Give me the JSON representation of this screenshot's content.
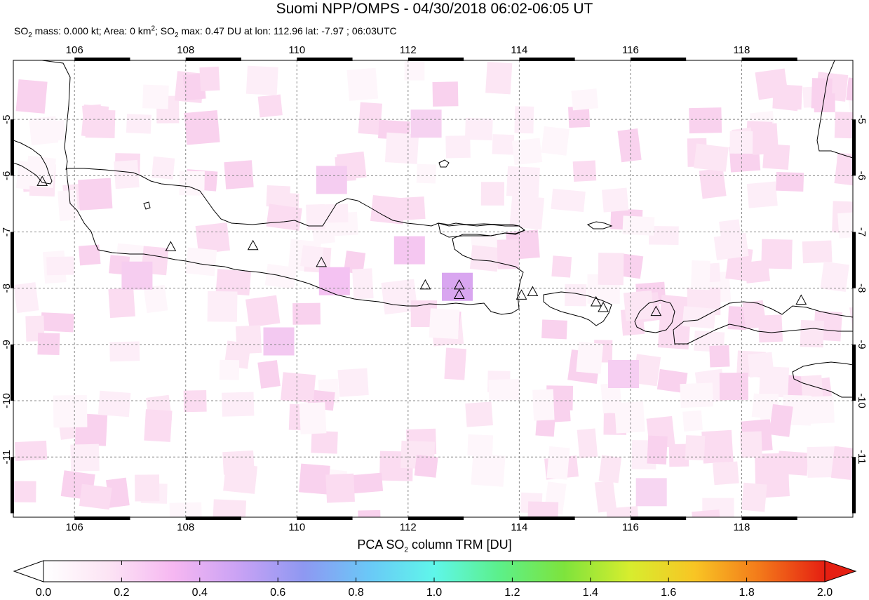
{
  "title": "Suomi NPP/OMPS - 04/30/2018 06:02-06:05 UT",
  "subtitle": {
    "so2_mass": "0.000 kt",
    "area": "0 km",
    "so2_max": "0.47 DU",
    "lon": "112.96",
    "lat": "-7.97",
    "time": "06:03UTC"
  },
  "map": {
    "lon_range": [
      104.9,
      120.0
    ],
    "lat_range": [
      -12.07,
      -3.95
    ],
    "lon_ticks": [
      "106",
      "108",
      "110",
      "112",
      "114",
      "116",
      "118"
    ],
    "lat_ticks": [
      "-5",
      "-6",
      "-7",
      "-8",
      "-9",
      "-10",
      "-11"
    ],
    "grid": "dashed",
    "volcanoes": [
      {
        "lon": 105.42,
        "lat": -6.1
      },
      {
        "lon": 107.73,
        "lat": -7.26
      },
      {
        "lon": 109.21,
        "lat": -7.24
      },
      {
        "lon": 110.44,
        "lat": -7.54
      },
      {
        "lon": 112.31,
        "lat": -7.94
      },
      {
        "lon": 112.92,
        "lat": -7.94
      },
      {
        "lon": 112.92,
        "lat": -8.11
      },
      {
        "lon": 114.04,
        "lat": -8.12
      },
      {
        "lon": 114.24,
        "lat": -8.06
      },
      {
        "lon": 115.38,
        "lat": -8.24
      },
      {
        "lon": 115.51,
        "lat": -8.34
      },
      {
        "lon": 116.46,
        "lat": -8.41
      },
      {
        "lon": 119.07,
        "lat": -8.21
      }
    ]
  },
  "colorbar": {
    "title": "PCA SO",
    "title_sub": "2",
    "title_rest": " column TRM [DU]",
    "min": 0.0,
    "max": 2.0,
    "ticks": [
      "0.0",
      "0.2",
      "0.4",
      "0.6",
      "0.8",
      "1.0",
      "1.2",
      "1.4",
      "1.6",
      "1.8",
      "2.0"
    ],
    "colors": [
      "#ffffff",
      "#fce4f4",
      "#f6b7f2",
      "#c9a2f4",
      "#8e98f2",
      "#6ac8f7",
      "#5ff6ea",
      "#5cf08a",
      "#7ee33c",
      "#d7ed2e",
      "#f8c524",
      "#f3791a",
      "#e51f12"
    ]
  }
}
